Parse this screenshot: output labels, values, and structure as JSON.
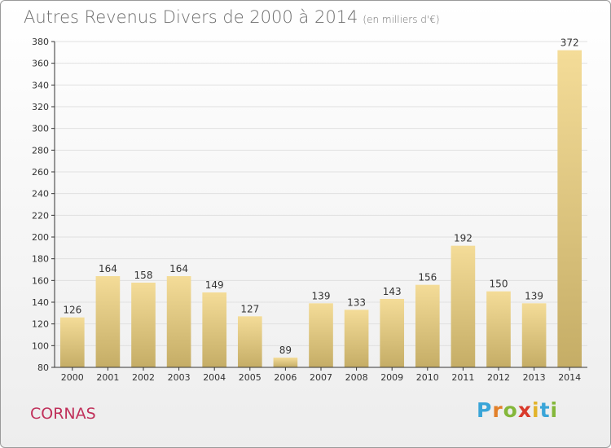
{
  "header": {
    "title": "Autres Revenus Divers de 2000 à 2014",
    "unit": "(en milliers d'€)"
  },
  "footer": {
    "commune": "CORNAS",
    "logo_letters": [
      "P",
      "r",
      "o",
      "x",
      "i",
      "t",
      "i"
    ],
    "logo_colors": [
      "#3aa5d8",
      "#e2802a",
      "#84b73a",
      "#d93a2b",
      "#e2b32a",
      "#3aa5d8",
      "#84b73a"
    ]
  },
  "colors": {
    "bar_light": "#f4dc98",
    "bar_dark": "#c5ad66",
    "grid": "#e0e0e0",
    "axis": "#333333"
  },
  "chart_data": {
    "type": "bar",
    "title": "Autres Revenus Divers de 2000 à 2014",
    "subtitle": "(en milliers d'€)",
    "categories": [
      "2000",
      "2001",
      "2002",
      "2003",
      "2004",
      "2005",
      "2006",
      "2007",
      "2008",
      "2009",
      "2010",
      "2011",
      "2012",
      "2013",
      "2014"
    ],
    "values": [
      126,
      164,
      158,
      164,
      149,
      127,
      89,
      139,
      133,
      143,
      156,
      192,
      150,
      139,
      372
    ],
    "ylim": [
      80,
      380
    ],
    "yticks": [
      80,
      100,
      120,
      140,
      160,
      180,
      200,
      220,
      240,
      260,
      280,
      300,
      320,
      340,
      360,
      380
    ],
    "grid": true,
    "xlabel": "",
    "ylabel": ""
  }
}
